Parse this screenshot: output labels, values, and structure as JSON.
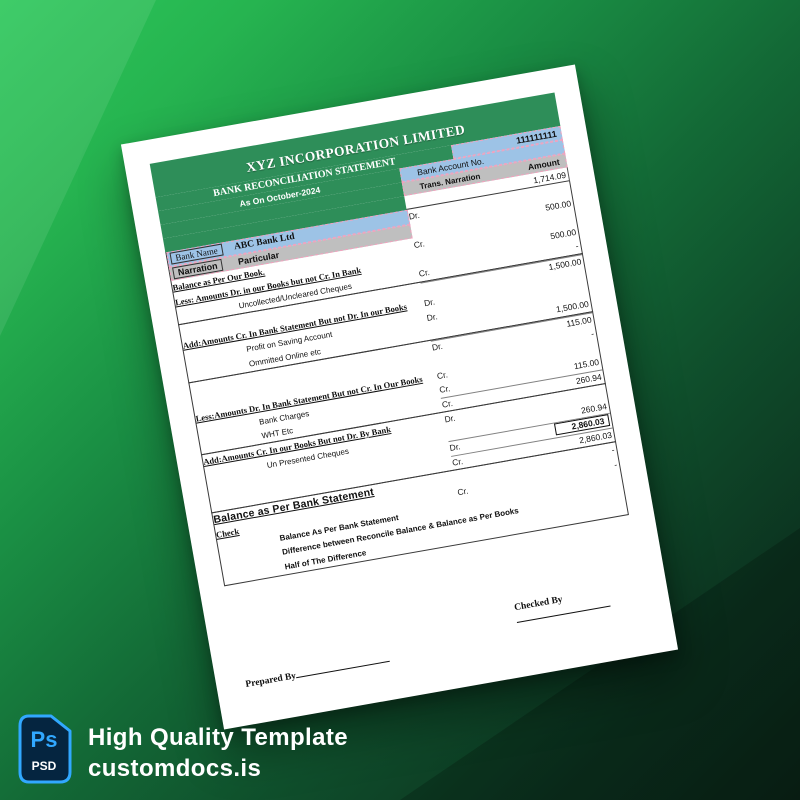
{
  "promo": {
    "badge_ps": "Ps",
    "badge_psd": "PSD",
    "line1": "High Quality Template",
    "line2": "customdocs.is"
  },
  "colors": {
    "band_green": "#2E8E59",
    "band_blue": "#9DC3E6",
    "band_gray": "#BFBFBF",
    "pink_border": "#F2A2BE",
    "bg_light": "#2CC75A",
    "bg_dark": "#0B2417",
    "ps_blue": "#31A8FF",
    "ps_navy": "#052540"
  },
  "document": {
    "title": "XYZ INCORPORATION LIMITED",
    "subtitle": "BANK RECONCILIATION STATEMENT",
    "date_line": "As On October-2024",
    "account_no": "111111111",
    "account_label": "Bank Account No.",
    "trans_label": "Trans. Narration",
    "amount_label": "Amount",
    "opening_amount": "1,714.09",
    "checked_by": "Checked By",
    "prepared_by": "Prepared By",
    "rows": [
      {
        "sec": "a",
        "kind": "bankname",
        "label": "Bank Name",
        "value": "ABC Bank Ltd",
        "drcr": "Dr.",
        "amt": ""
      },
      {
        "sec": "a",
        "kind": "narration",
        "label": "Narration",
        "value": "Particular",
        "drcr": "",
        "amt": "500.00"
      },
      {
        "sec": "a",
        "kind": "header",
        "desc": "Balance as Per Our Book.",
        "drcr": "Cr.",
        "amt": ""
      },
      {
        "sec": "a",
        "kind": "header",
        "desc": "Less: Amounts Dr. in our Books but not Cr. In Bank",
        "drcr": "",
        "amt": "500.00"
      },
      {
        "sec": "a",
        "kind": "item",
        "desc": "Uncollected/Uncleared Cheques",
        "drcr": "Cr.",
        "amt": "-"
      },
      {
        "sec": "b",
        "kind": "blank",
        "desc": "",
        "drcr": "",
        "amt": "1,500.00",
        "sum": true
      },
      {
        "sec": "b",
        "kind": "header",
        "desc": "Add:Amounts Cr. In Bank Statement But not Dr. In our Books",
        "drcr": "Dr.",
        "amt": ""
      },
      {
        "sec": "b",
        "kind": "item",
        "desc": "Profit on Saving Account",
        "drcr": "Dr.",
        "amt": ""
      },
      {
        "sec": "b",
        "kind": "item",
        "desc": "Ommitted Online etc",
        "drcr": "",
        "amt": "1,500.00"
      },
      {
        "sec": "c",
        "kind": "blank",
        "desc": "",
        "drcr": "Dr.",
        "amt": "115.00",
        "sum": true
      },
      {
        "sec": "c",
        "kind": "blank",
        "desc": "",
        "drcr": "",
        "amt": "-"
      },
      {
        "sec": "c",
        "kind": "header",
        "desc": "Less:Amounts Dr. In Bank Statement But not Cr. In Our Books",
        "drcr": "Cr.",
        "amt": ""
      },
      {
        "sec": "c",
        "kind": "item",
        "desc": "Bank Charges",
        "drcr": "Cr.",
        "amt": "115.00"
      },
      {
        "sec": "c",
        "kind": "item",
        "desc": "WHT Etc",
        "drcr": "Cr.",
        "amt": "260.94",
        "sum": true
      },
      {
        "sec": "d",
        "kind": "header",
        "desc": "Add:Amounts Cr. In our Books But not Dr. By Bank",
        "drcr": "Dr.",
        "amt": ""
      },
      {
        "sec": "d",
        "kind": "item",
        "desc": "Un Presented Cheques",
        "drcr": "",
        "amt": "260.94"
      },
      {
        "sec": "d",
        "kind": "blank",
        "desc": "",
        "drcr": "Dr.",
        "amt": "2,860.03",
        "boxed": true,
        "sum": true
      },
      {
        "sec": "d",
        "kind": "blank",
        "desc": "",
        "drcr": "Cr.",
        "amt": "2,860.03",
        "sum": true
      },
      {
        "sec": "e",
        "kind": "bigheader",
        "desc": "Balance as Per Bank Statement",
        "drcr": "",
        "amt": "-"
      },
      {
        "sec": "e",
        "kind": "header",
        "desc": "Check",
        "drcr": "Cr.",
        "amt": "-"
      },
      {
        "sec": "e",
        "kind": "boldline",
        "desc": "Balance As Per Bank Statement",
        "drcr": "",
        "amt": ""
      },
      {
        "sec": "e",
        "kind": "boldline",
        "desc": "Difference between Reconcile Balance & Balance as Per Books",
        "drcr": "",
        "amt": ""
      },
      {
        "sec": "e",
        "kind": "boldline",
        "desc": "Half of The Difference",
        "drcr": "",
        "amt": ""
      }
    ]
  }
}
